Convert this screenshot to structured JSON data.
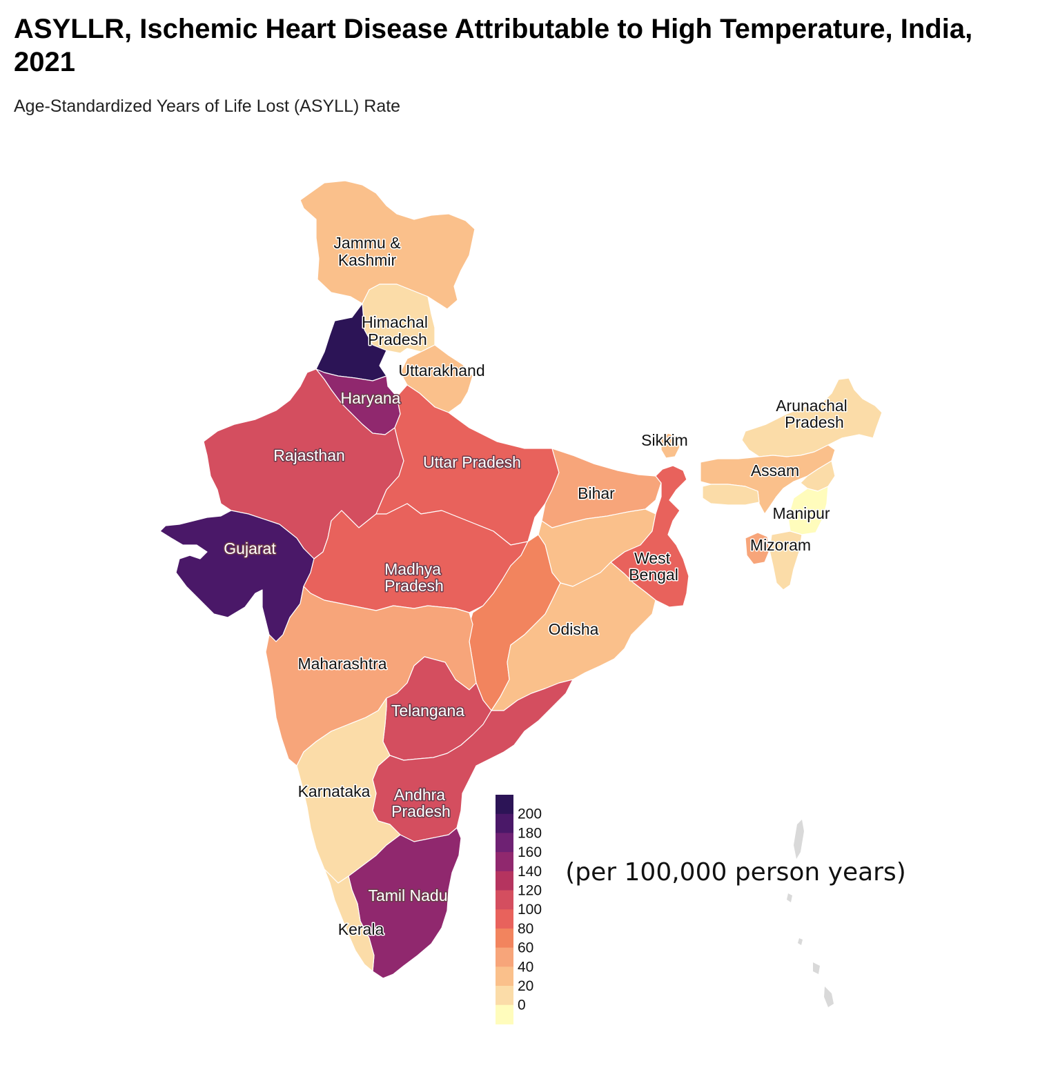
{
  "title": "ASYLLR, Ischemic Heart Disease Attributable to High Temperature, India, 2021",
  "subtitle": "Age-Standardized Years of Life Lost (ASYLL) Rate",
  "unit_note": "(per 100,000 person  years)",
  "chart_data": {
    "type": "choropleth",
    "title": "ASYLLR, Ischemic Heart Disease Attributable to High Temperature, India, 2021",
    "subtitle": "Age-Standardized Years of Life Lost (ASYLL) Rate",
    "legend": {
      "ticks": [
        200,
        180,
        160,
        140,
        120,
        100,
        80,
        60,
        40,
        20,
        0
      ],
      "colors": [
        "#2c1456",
        "#4a1868",
        "#6e2173",
        "#90286e",
        "#b5345f",
        "#d44e5f",
        "#e8625c",
        "#f2845e",
        "#f7a57a",
        "#fac08b",
        "#fbdca8",
        "#fffcbc"
      ],
      "placement": "bottom-center"
    },
    "regions": [
      {
        "name": "Jammu & Kashmir",
        "label": [
          "Jammu &",
          "Kashmir"
        ],
        "color": "#fac08b"
      },
      {
        "name": "Himachal Pradesh",
        "label": [
          "Himachal",
          "Pradesh"
        ],
        "color": "#fbdca8"
      },
      {
        "name": "Punjab",
        "label": [],
        "color": "#2c1456"
      },
      {
        "name": "Uttarakhand",
        "label": [
          "Uttarakhand"
        ],
        "color": "#fac08b"
      },
      {
        "name": "Haryana",
        "label": [
          "Haryana"
        ],
        "color": "#90286e"
      },
      {
        "name": "Rajasthan",
        "label": [
          "Rajasthan"
        ],
        "color": "#d44e5f"
      },
      {
        "name": "Uttar Pradesh",
        "label": [
          "Uttar Pradesh"
        ],
        "color": "#e8625c"
      },
      {
        "name": "Gujarat",
        "label": [
          "Gujarat"
        ],
        "color": "#4a1868"
      },
      {
        "name": "Madhya Pradesh",
        "label": [
          "Madhya",
          "Pradesh"
        ],
        "color": "#e8625c"
      },
      {
        "name": "Bihar",
        "label": [
          "Bihar"
        ],
        "color": "#f7a57a"
      },
      {
        "name": "Jharkhand",
        "label": [],
        "color": "#fac08b"
      },
      {
        "name": "West Bengal",
        "label": [
          "West",
          "Bengal"
        ],
        "color": "#e8625c"
      },
      {
        "name": "Sikkim",
        "label": [
          "Sikkim"
        ],
        "color": "#fac08b"
      },
      {
        "name": "Chhattisgarh",
        "label": [],
        "color": "#f2845e"
      },
      {
        "name": "Odisha",
        "label": [
          "Odisha"
        ],
        "color": "#fac08b"
      },
      {
        "name": "Maharashtra",
        "label": [
          "Maharashtra"
        ],
        "color": "#f7a57a"
      },
      {
        "name": "Telangana",
        "label": [
          "Telangana"
        ],
        "color": "#d44e5f"
      },
      {
        "name": "Andhra Pradesh",
        "label": [
          "Andhra",
          "Pradesh"
        ],
        "color": "#d44e5f"
      },
      {
        "name": "Karnataka",
        "label": [
          "Karnataka"
        ],
        "color": "#fbdca8"
      },
      {
        "name": "Tamil Nadu",
        "label": [
          "Tamil Nadu"
        ],
        "color": "#90286e"
      },
      {
        "name": "Kerala",
        "label": [
          "Kerala"
        ],
        "color": "#fbdca8"
      },
      {
        "name": "Arunachal Pradesh",
        "label": [
          "Arunachal",
          "Pradesh"
        ],
        "color": "#fbdca8"
      },
      {
        "name": "Assam",
        "label": [
          "Assam"
        ],
        "color": "#fac08b"
      },
      {
        "name": "Meghalaya",
        "label": [],
        "color": "#fbdca8"
      },
      {
        "name": "Nagaland",
        "label": [],
        "color": "#fbdca8"
      },
      {
        "name": "Manipur",
        "label": [
          "Manipur"
        ],
        "color": "#fffcbc"
      },
      {
        "name": "Mizoram",
        "label": [
          "Mizoram"
        ],
        "color": "#fbdca8"
      },
      {
        "name": "Tripura",
        "label": [],
        "color": "#f7a57a"
      }
    ]
  }
}
